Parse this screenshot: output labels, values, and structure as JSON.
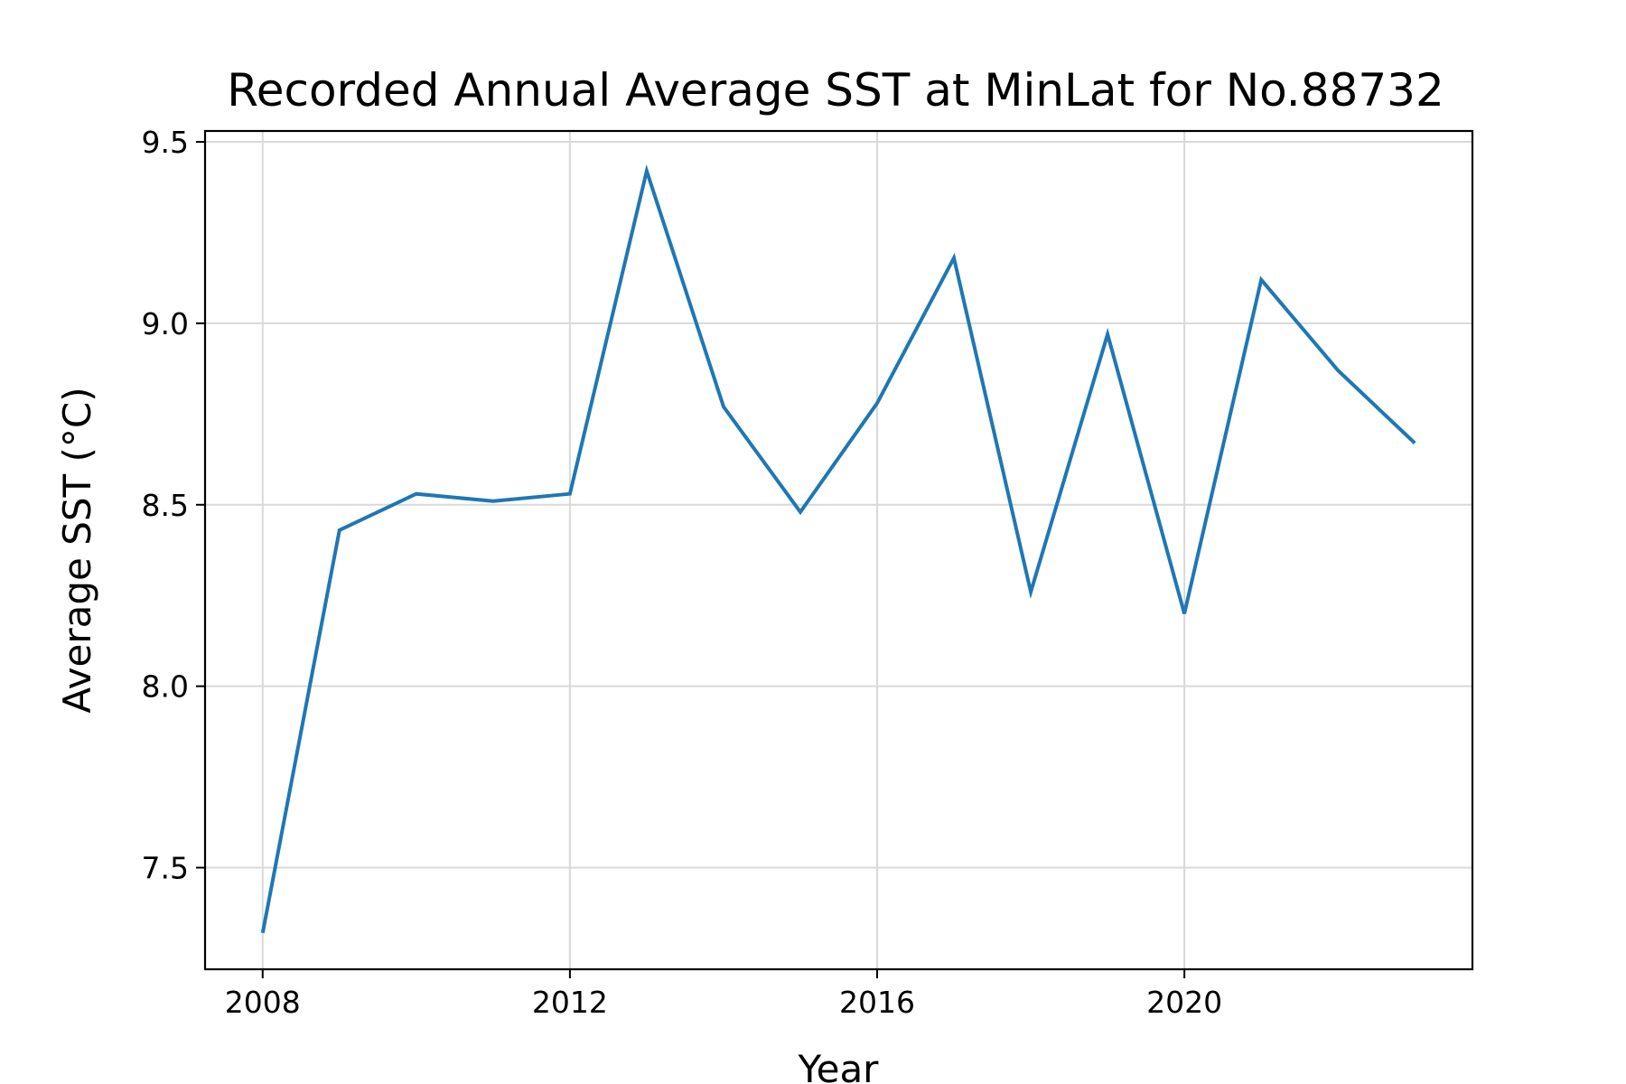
{
  "chart_data": {
    "type": "line",
    "title": "Recorded Annual Average SST at MinLat for No.88732",
    "xlabel": "Year",
    "ylabel": "Average SST (°C)",
    "xlim": [
      2007.25,
      2023.75
    ],
    "ylim": [
      7.22,
      9.53
    ],
    "xticks": [
      2008,
      2012,
      2016,
      2020
    ],
    "xtick_labels": [
      "2008",
      "2012",
      "2016",
      "2020"
    ],
    "yticks": [
      7.5,
      8.0,
      8.5,
      9.0,
      9.5
    ],
    "ytick_labels": [
      "7.5",
      "8.0",
      "8.5",
      "9.0",
      "9.5"
    ],
    "grid": true,
    "series": [
      {
        "color": "#1f77b4",
        "x": [
          2008,
          2009,
          2010,
          2011,
          2012,
          2013,
          2014,
          2015,
          2016,
          2017,
          2018,
          2019,
          2020,
          2021,
          2022,
          2023
        ],
        "y": [
          7.32,
          8.43,
          8.53,
          8.51,
          8.53,
          9.42,
          8.77,
          8.48,
          8.78,
          9.18,
          8.26,
          8.97,
          8.2,
          9.12,
          8.87,
          8.67
        ]
      }
    ]
  }
}
